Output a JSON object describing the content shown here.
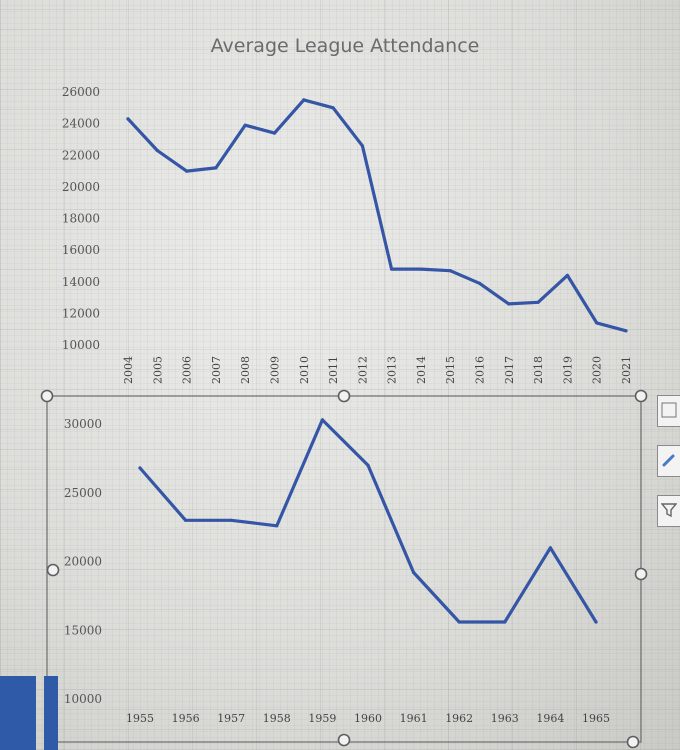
{
  "chart_data": [
    {
      "type": "line",
      "title": "Average League Attendance",
      "xlabel": "",
      "ylabel": "",
      "categories": [
        "2004",
        "2005",
        "2006",
        "2007",
        "2008",
        "2009",
        "2010",
        "2011",
        "2012",
        "2013",
        "2014",
        "2015",
        "2016",
        "2017",
        "2018",
        "2019",
        "2020",
        "2021"
      ],
      "values": [
        24300,
        22300,
        21000,
        21200,
        23900,
        23400,
        25500,
        25000,
        22600,
        14800,
        14800,
        14700,
        13900,
        12600,
        12700,
        14400,
        11400,
        10900
      ],
      "yticks": [
        "26000",
        "24000",
        "22000",
        "20000",
        "18000",
        "16000",
        "14000",
        "12000",
        "10000"
      ],
      "ylim": [
        10000,
        26000
      ],
      "grid": false,
      "legend": "none",
      "color": "#3556a6"
    },
    {
      "type": "line",
      "title": "",
      "xlabel": "",
      "ylabel": "",
      "categories": [
        "1955",
        "1956",
        "1957",
        "1958",
        "1959",
        "1960",
        "1961",
        "1962",
        "1963",
        "1964",
        "1965"
      ],
      "values": [
        26800,
        23000,
        23000,
        22600,
        30300,
        27000,
        19200,
        15600,
        15600,
        21000,
        15600
      ],
      "yticks": [
        "30000",
        "25000",
        "20000",
        "15000",
        "10000"
      ],
      "ylim": [
        10000,
        30000
      ],
      "grid": false,
      "legend": "none",
      "color": "#3556a6"
    }
  ],
  "toolbar": {
    "side_buttons": [
      "chart-elements",
      "chart-styles",
      "chart-filters"
    ]
  }
}
